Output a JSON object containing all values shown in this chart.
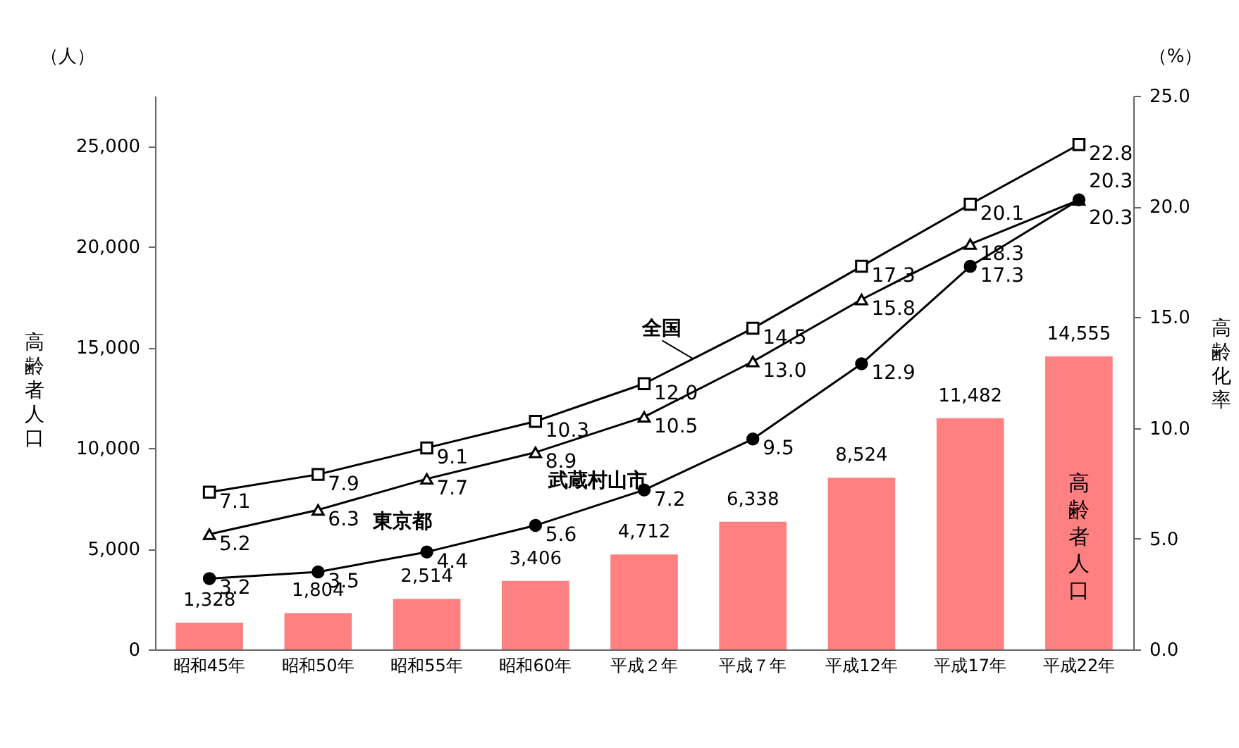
{
  "chart_data": {
    "type": "bar",
    "categories": [
      "昭和45年",
      "昭和50年",
      "昭和55年",
      "昭和60年",
      "平成２年",
      "平成７年",
      "平成12年",
      "平成17年",
      "平成22年"
    ],
    "ylabel": "高齢者人口",
    "y2label": "高齢化率",
    "annotations": [
      "（人）",
      "（%）"
    ],
    "ylim": [
      0,
      27500
    ],
    "yticks": [
      {
        "value": 0,
        "label": "0"
      },
      {
        "value": 5000,
        "label": "5,000"
      },
      {
        "value": 10000,
        "label": "10,000"
      },
      {
        "value": 15000,
        "label": "15,000"
      },
      {
        "value": 20000,
        "label": "20,000"
      },
      {
        "value": 25000,
        "label": "25,000"
      }
    ],
    "y2lim": [
      0,
      25
    ],
    "y2ticks": [
      {
        "value": 0,
        "label": "0.0"
      },
      {
        "value": 5,
        "label": "5.0"
      },
      {
        "value": 10,
        "label": "10.0"
      },
      {
        "value": 15,
        "label": "15.0"
      },
      {
        "value": 20,
        "label": "20.0"
      },
      {
        "value": 25,
        "label": "25.0"
      }
    ],
    "legend": false,
    "grid": false,
    "series": [
      {
        "name": "高齢者人口",
        "color": "#ff8080",
        "values": [
          1328,
          1804,
          2514,
          3406,
          4712,
          6338,
          8524,
          11482,
          14555
        ],
        "value_labels": [
          "1,328",
          "1,804",
          "2,514",
          "3,406",
          "4,712",
          "6,338",
          "8,524",
          "11,482",
          "14,555"
        ]
      },
      {
        "name": "全国",
        "type": "line",
        "axis": "y2",
        "marker": "square",
        "color": "#000000",
        "values": [
          7.1,
          7.9,
          9.1,
          10.3,
          12.0,
          14.5,
          17.3,
          20.1,
          22.8
        ],
        "value_labels": [
          "7.1",
          "7.9",
          "9.1",
          "10.3",
          "12.0",
          "14.5",
          "17.3",
          "20.1",
          "22.8"
        ]
      },
      {
        "name": "東京都",
        "type": "line",
        "axis": "y2",
        "marker": "triangle",
        "color": "#000000",
        "values": [
          5.2,
          6.3,
          7.7,
          8.9,
          10.5,
          13.0,
          15.8,
          18.3,
          20.3
        ],
        "value_labels": [
          "5.2",
          "6.3",
          "7.7",
          "8.9",
          "10.5",
          "13.0",
          "15.8",
          "18.3",
          "20.3"
        ]
      },
      {
        "name": "武蔵村山市",
        "type": "line",
        "axis": "y2",
        "marker": "circle",
        "color": "#000000",
        "values": [
          3.2,
          3.5,
          4.4,
          5.6,
          7.2,
          9.5,
          12.9,
          17.3,
          20.3
        ],
        "value_labels": [
          "3.2",
          "3.5",
          "4.4",
          "5.6",
          "7.2",
          "9.5",
          "12.9",
          "17.3",
          "20.3"
        ]
      }
    ]
  }
}
